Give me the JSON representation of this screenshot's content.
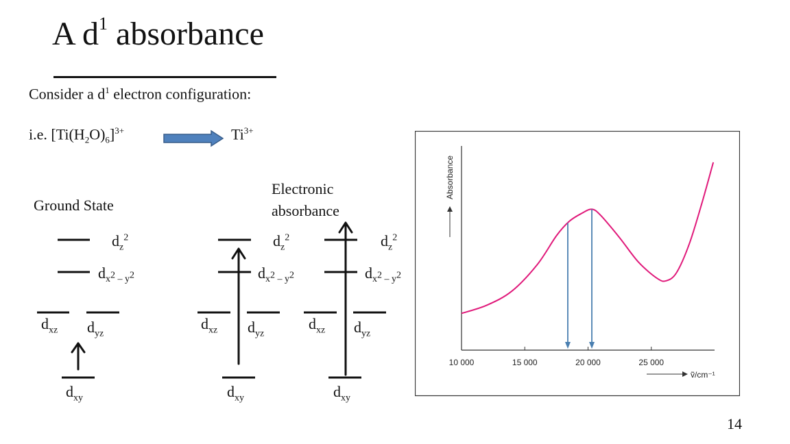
{
  "slide": {
    "title_main": "A d",
    "title_sup": "1",
    "title_rest": " absorbance",
    "intro_pre": "Consider a d",
    "intro_sup": "1",
    "intro_post": " electron configuration:",
    "formula_ie": "i.e. [Ti(H",
    "formula_sub1": "2",
    "formula_mid": "O)",
    "formula_sub2": "6",
    "formula_close": "]",
    "formula_sup": "3+",
    "ion_main": "Ti",
    "ion_sup": "3+",
    "page_number": "14",
    "colors": {
      "arrow_fill": "#4f81bd",
      "arrow_stroke": "#385d8a",
      "curve": "#e0197a",
      "drop_lines": "#4a7fb0"
    }
  },
  "diagram": {
    "ground_label": "Ground State",
    "electronic_label_line1": "Electronic",
    "electronic_label_line2": "absorbance",
    "orbitals": {
      "dz2_base": "d",
      "dz2_sub": "z",
      "dz2_sup": "2",
      "dx2y2_base": "d",
      "dx2y2_sub1": "x",
      "dx2y2_sup1": "2",
      "dx2y2_mid": " – y",
      "dx2y2_sup2": "2",
      "dxz_base": "d",
      "dxz_sub": "xz",
      "dyz_base": "d",
      "dyz_sub": "yz",
      "dxy_base": "d",
      "dxy_sub": "xy"
    }
  },
  "chart_data": {
    "type": "line",
    "ylabel": "Absorbance",
    "xlabel": "ṽ/cm⁻¹",
    "x_ticks": [
      "10 000",
      "15 000",
      "20 000",
      "25 000"
    ],
    "xlim": [
      10000,
      30000
    ],
    "series": [
      {
        "x": [
          10000,
          12000,
          14000,
          16000,
          17500,
          18500,
          19500,
          20300,
          21000,
          22500,
          24000,
          25500,
          26200,
          27000,
          28000,
          29000,
          29900
        ],
        "y": [
          0.18,
          0.22,
          0.29,
          0.42,
          0.56,
          0.63,
          0.67,
          0.69,
          0.66,
          0.55,
          0.43,
          0.35,
          0.34,
          0.38,
          0.52,
          0.72,
          0.92
        ]
      }
    ],
    "ylim": [
      0,
      1
    ],
    "markers": [
      18400,
      20300
    ],
    "grid": false
  }
}
